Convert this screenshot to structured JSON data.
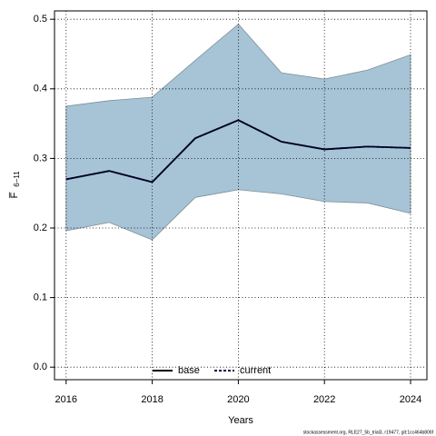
{
  "chart_data": {
    "type": "line",
    "xlabel": "Years",
    "ylabel": "F̅",
    "ylabel_sub": "6−11",
    "footer": "stockassessment.org, RLE27_5b_trial3, r19477, git:1cc464b806f",
    "x": [
      2016,
      2017,
      2018,
      2019,
      2020,
      2021,
      2022,
      2023,
      2024
    ],
    "series": [
      {
        "name": "base",
        "color": "#000000",
        "style": "solid",
        "values": [
          0.27,
          0.282,
          0.266,
          0.329,
          0.355,
          0.324,
          0.313,
          0.317,
          0.315
        ]
      },
      {
        "name": "current",
        "color": "#00003f",
        "style": "dashed",
        "values": [
          0.27,
          0.282,
          0.266,
          0.329,
          0.355,
          0.324,
          0.313,
          0.317,
          0.315
        ]
      }
    ],
    "band": {
      "color": "#a6c4d6",
      "lower": [
        0.196,
        0.208,
        0.183,
        0.244,
        0.255,
        0.249,
        0.238,
        0.236,
        0.221
      ],
      "upper": [
        0.375,
        0.383,
        0.388,
        0.441,
        0.493,
        0.423,
        0.414,
        0.427,
        0.449
      ]
    },
    "xlim": [
      2015.73,
      2024.38
    ],
    "ylim": [
      -0.018,
      0.512
    ],
    "xticks": [
      2016,
      2018,
      2020,
      2022,
      2024
    ],
    "yticks": [
      {
        "value": 0,
        "label": "0.0"
      },
      0.1,
      0.2,
      0.3,
      0.4,
      0.5
    ],
    "grid": true,
    "legend": "bottom"
  }
}
